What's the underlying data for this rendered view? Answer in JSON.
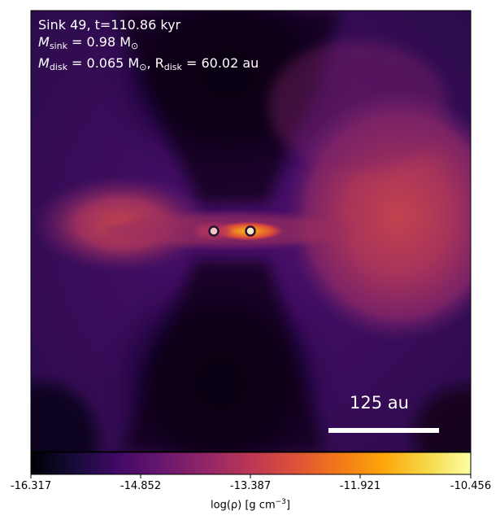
{
  "overlay": {
    "line1": "Sink 49, t=110.86 kyr",
    "line2_prefix": "M",
    "line2_sub": "sink",
    "line2_value": " = 0.98 M",
    "line2_sun_sub": "⊙",
    "line3_prefix": "M",
    "line3_sub": "disk",
    "line3_value": " = 0.065 M",
    "line3_sun_sub": "⊙",
    "line3_mid": ", R",
    "line3_rsub": "disk",
    "line3_rvalue": " = 60.02 au"
  },
  "scalebar": {
    "label": "125 au"
  },
  "colorbar": {
    "colormap": "inferno",
    "ticks": [
      "-16.317",
      "-14.852",
      "-13.387",
      "-11.921",
      "-10.456"
    ],
    "label_main": "log(ρ) [g cm",
    "label_exp": "−3",
    "label_end": "]"
  },
  "sinks": {
    "count": 2
  }
}
